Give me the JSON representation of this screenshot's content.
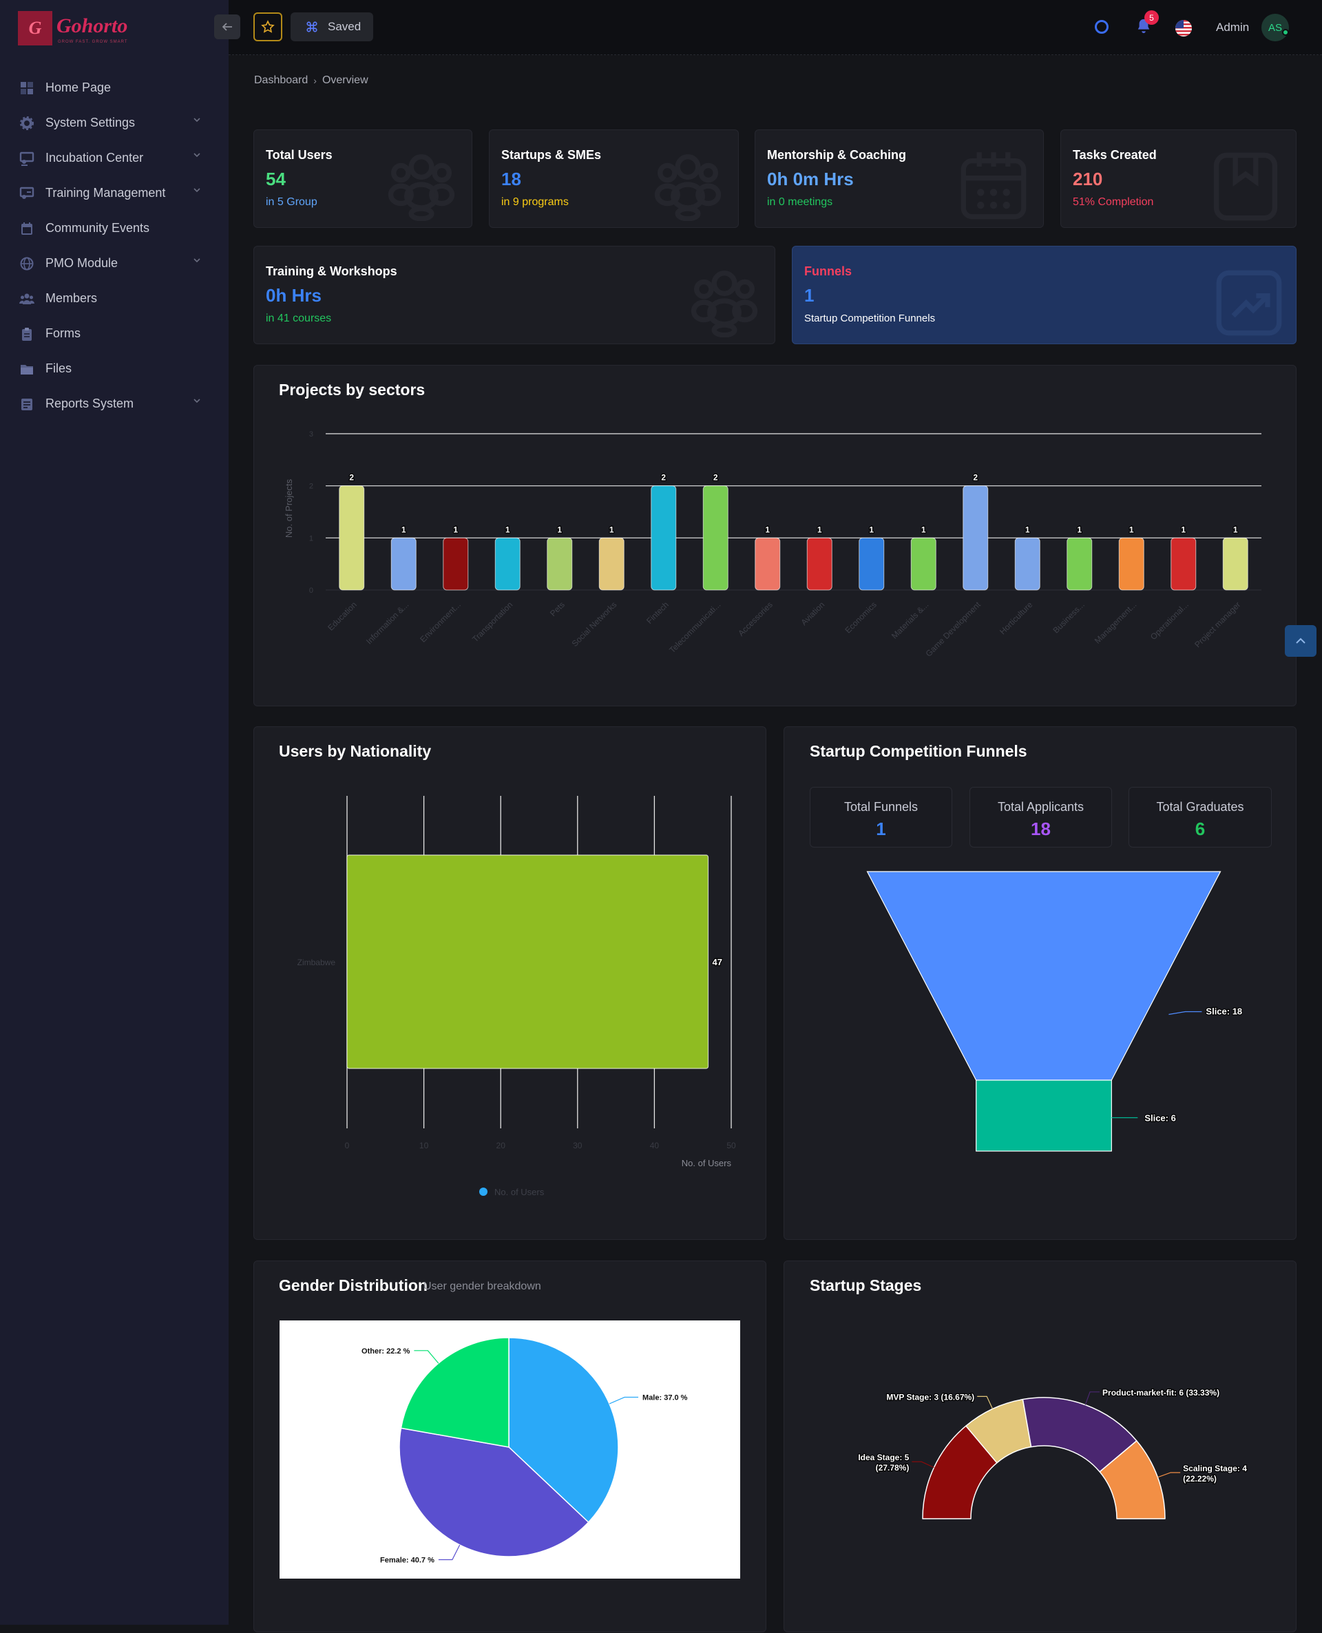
{
  "brand": {
    "name": "Gohorto",
    "tagline": "GROW FAST. GROW SMART"
  },
  "sidebar": {
    "items": [
      {
        "label": "Home Page",
        "icon": "home-icon",
        "expandable": false
      },
      {
        "label": "System Settings",
        "icon": "gear-icon",
        "expandable": true
      },
      {
        "label": "Incubation Center",
        "icon": "presentation-icon",
        "expandable": true
      },
      {
        "label": "Training Management",
        "icon": "training-icon",
        "expandable": true
      },
      {
        "label": "Community Events",
        "icon": "calendar-icon",
        "expandable": false
      },
      {
        "label": "PMO Module",
        "icon": "globe-icon",
        "expandable": true
      },
      {
        "label": "Members",
        "icon": "users-icon",
        "expandable": false
      },
      {
        "label": "Forms",
        "icon": "clipboard-icon",
        "expandable": false
      },
      {
        "label": "Files",
        "icon": "folder-icon",
        "expandable": false
      },
      {
        "label": "Reports System",
        "icon": "report-icon",
        "expandable": true
      }
    ]
  },
  "topbar": {
    "saved_label": "Saved",
    "notifications": "5",
    "user": "Admin",
    "initials": "AS"
  },
  "breadcrumb": [
    "Dashboard",
    "Overview"
  ],
  "stats": [
    {
      "title": "Total Users",
      "value": "54",
      "sub": "in 5 Group",
      "value_color": "#4ade80",
      "sub_color": "#60a5fa"
    },
    {
      "title": "Startups & SMEs",
      "value": "18",
      "sub": "in 9 programs",
      "value_color": "#3b82f6",
      "sub_color": "#facc15"
    },
    {
      "title": "Mentorship & Coaching",
      "value": "0h 0m Hrs",
      "sub": "in 0 meetings",
      "value_color": "#60a5fa",
      "sub_color": "#22c55e"
    },
    {
      "title": "Tasks Created",
      "value": "210",
      "sub": "51% Completion",
      "value_color": "#f87171",
      "sub_color": "#f43f5e"
    },
    {
      "title": "Training & Workshops",
      "value": "0h Hrs",
      "sub": "in 41 courses",
      "value_color": "#3b82f6",
      "sub_color": "#22c55e"
    },
    {
      "title": "Funnels",
      "value": "1",
      "sub": "Startup Competition Funnels",
      "value_color": "#3b82f6",
      "sub_color": "#ffffff",
      "title_color": "#f43f5e"
    }
  ],
  "sectors_panel": {
    "title": "Projects by sectors"
  },
  "nationality_panel": {
    "title": "Users by Nationality"
  },
  "funnels_panel": {
    "title": "Startup Competition Funnels",
    "stats": [
      {
        "label": "Total Funnels",
        "value": "1",
        "color": "#3b82f6"
      },
      {
        "label": "Total Applicants",
        "value": "18",
        "color": "#a855f7"
      },
      {
        "label": "Total Graduates",
        "value": "6",
        "color": "#22c55e"
      }
    ]
  },
  "gender_panel": {
    "title": "Gender Distribution",
    "subtitle": "User gender breakdown"
  },
  "stages_panel": {
    "title": "Startup Stages"
  },
  "chart_data": [
    {
      "type": "bar",
      "name": "Projects by sectors",
      "ylabel": "No. of Projects",
      "ylim": [
        0,
        3
      ],
      "yticks": [
        "0",
        "1",
        "2",
        "3"
      ],
      "categories": [
        "Education",
        "Information &...",
        "Environment...",
        "Transportation",
        "Pets",
        "Social Networks",
        "Fintech",
        "Telecommunicati...",
        "Accessories",
        "Aviation",
        "Economics",
        "Materials &...",
        "Game Development",
        "Horticulture",
        "Business...",
        "Management...",
        "Operational...",
        "Project manager"
      ],
      "values": [
        2,
        1,
        1,
        1,
        1,
        1,
        2,
        2,
        1,
        1,
        1,
        1,
        2,
        1,
        1,
        1,
        1,
        1
      ],
      "colors": [
        "#d4dc7e",
        "#7ba4e8",
        "#8e0f0f",
        "#1bb4d4",
        "#a8cc6a",
        "#e2c67a",
        "#1bb4d4",
        "#79cc52",
        "#ec7565",
        "#d22a2a",
        "#2f7ee0",
        "#79cc52",
        "#7ba4e8",
        "#7ba4e8",
        "#79cc52",
        "#f28a3a",
        "#d22a2a",
        "#d4dc7e"
      ],
      "grid": true
    },
    {
      "type": "bar",
      "orientation": "horizontal",
      "name": "Users by Nationality",
      "categories": [
        "Zimbabwe"
      ],
      "values": [
        47
      ],
      "xlabel": "No. of Users",
      "xlim": [
        0,
        50
      ],
      "xticks": [
        "0",
        "10",
        "20",
        "30",
        "40",
        "50"
      ],
      "legend": "No. of Users",
      "color": "#8fbc22"
    },
    {
      "type": "funnel",
      "name": "Startup Competition Funnels",
      "stages": [
        {
          "label": "Slice: 18",
          "value": 18,
          "color": "#4f8cff"
        },
        {
          "label": "Slice: 6",
          "value": 6,
          "color": "#00b894"
        }
      ]
    },
    {
      "type": "pie",
      "name": "Gender Distribution",
      "slices": [
        {
          "label": "Male: 37.0 %",
          "value": 37.0,
          "color": "#2aa9f8"
        },
        {
          "label": "Female: 40.7 %",
          "value": 40.7,
          "color": "#5a4fcf"
        },
        {
          "label": "Other: 22.2 %",
          "value": 22.2,
          "color": "#00e070"
        }
      ]
    },
    {
      "type": "pie",
      "variant": "semi-donut",
      "name": "Startup Stages",
      "slices": [
        {
          "label": "Idea Stage: 5",
          "label2": "(27.78%)",
          "value": 5,
          "color": "#8e0a0a"
        },
        {
          "label": "MVP Stage: 3 (16.67%)",
          "label2": "",
          "value": 3,
          "color": "#e2c67a"
        },
        {
          "label": "Product-market-fit: 6 (33.33%)",
          "label2": "",
          "value": 6,
          "color": "#4a2670"
        },
        {
          "label": "Scaling Stage: 4",
          "label2": "(22.22%)",
          "value": 4,
          "color": "#f28f45"
        }
      ]
    }
  ]
}
